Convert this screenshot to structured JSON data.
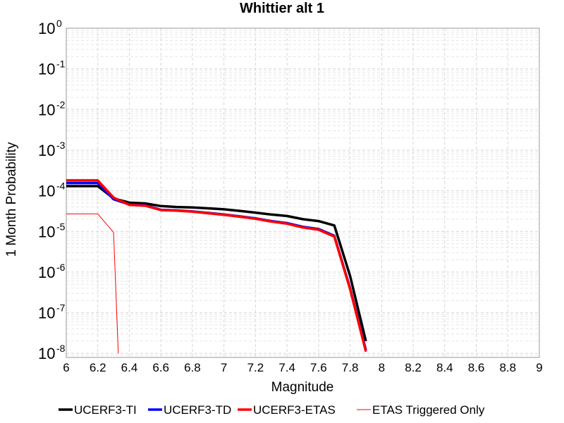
{
  "chart_data": {
    "type": "line",
    "title": "Whittier alt 1",
    "xlabel": "Magnitude",
    "ylabel": "1 Month Probability",
    "xlim": [
      6,
      9
    ],
    "ylim_exponents": [
      -8.1,
      0
    ],
    "y_scale": "log",
    "grid": true,
    "legend_position": "bottom",
    "x_ticks": [
      "6",
      "6.2",
      "6.4",
      "6.6",
      "6.8",
      "7",
      "7.2",
      "7.4",
      "7.6",
      "7.8",
      "8",
      "8.2",
      "8.4",
      "8.6",
      "8.8",
      "9"
    ],
    "y_ticks": [
      {
        "base": "10",
        "exp": "0"
      },
      {
        "base": "10",
        "exp": "-1"
      },
      {
        "base": "10",
        "exp": "-2"
      },
      {
        "base": "10",
        "exp": "-3"
      },
      {
        "base": "10",
        "exp": "-4"
      },
      {
        "base": "10",
        "exp": "-5"
      },
      {
        "base": "10",
        "exp": "-6"
      },
      {
        "base": "10",
        "exp": "-7"
      },
      {
        "base": "10",
        "exp": "-8"
      }
    ],
    "series": [
      {
        "name": "UCERF3-TI",
        "color": "#000000",
        "x": [
          6.0,
          6.2,
          6.3,
          6.4,
          6.5,
          6.6,
          6.7,
          6.8,
          6.9,
          7.0,
          7.1,
          7.2,
          7.3,
          7.4,
          7.5,
          7.6,
          7.7,
          7.8,
          7.9
        ],
        "y": [
          0.00013,
          0.00013,
          6.5e-05,
          5.1e-05,
          4.9e-05,
          4.2e-05,
          4e-05,
          3.9e-05,
          3.7e-05,
          3.5e-05,
          3.2e-05,
          2.9e-05,
          2.6e-05,
          2.4e-05,
          2e-05,
          1.8e-05,
          1.4e-05,
          8e-07,
          2e-08
        ]
      },
      {
        "name": "UCERF3-TD",
        "color": "#0000ff",
        "x": [
          6.0,
          6.2,
          6.3,
          6.4,
          6.5,
          6.6,
          6.7,
          6.8,
          6.9,
          7.0,
          7.1,
          7.2,
          7.3,
          7.4,
          7.5,
          7.6,
          7.7,
          7.8,
          7.9
        ],
        "y": [
          0.000155,
          0.000155,
          6.2e-05,
          4.6e-05,
          4.4e-05,
          3.4e-05,
          3.3e-05,
          3.1e-05,
          2.85e-05,
          2.6e-05,
          2.35e-05,
          2.1e-05,
          1.8e-05,
          1.6e-05,
          1.3e-05,
          1.15e-05,
          7.8e-06,
          4e-07,
          1.2e-08
        ]
      },
      {
        "name": "UCERF3-ETAS",
        "color": "#ff0000",
        "x": [
          6.0,
          6.2,
          6.3,
          6.4,
          6.5,
          6.6,
          6.7,
          6.8,
          6.9,
          7.0,
          7.1,
          7.2,
          7.3,
          7.4,
          7.5,
          7.6,
          7.7,
          7.8,
          7.9
        ],
        "y": [
          0.00018,
          0.00018,
          6.8e-05,
          4.5e-05,
          4.3e-05,
          3.35e-05,
          3.25e-05,
          3.05e-05,
          2.8e-05,
          2.55e-05,
          2.3e-05,
          2.05e-05,
          1.75e-05,
          1.55e-05,
          1.25e-05,
          1.1e-05,
          7.5e-06,
          3.8e-07,
          1.1e-08
        ]
      },
      {
        "name": "ETAS Triggered Only",
        "color": "#ff0000",
        "thin": true,
        "x": [
          6.0,
          6.2,
          6.3,
          6.33
        ],
        "y": [
          2.7e-05,
          2.7e-05,
          9.5e-06,
          1e-08
        ]
      }
    ]
  }
}
